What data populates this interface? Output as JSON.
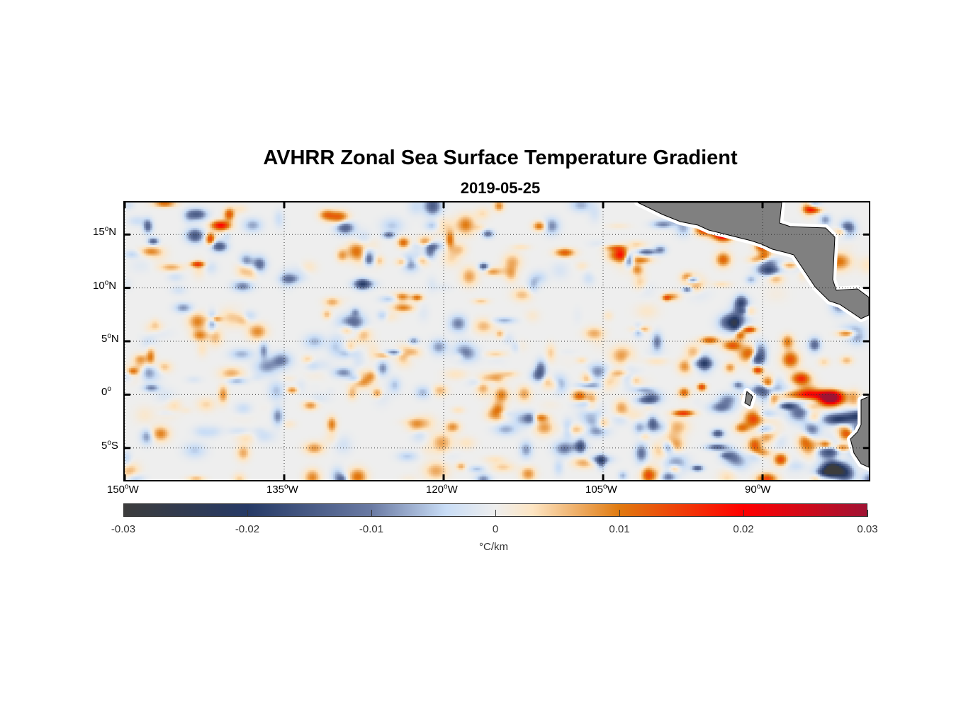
{
  "chart_data": {
    "type": "heatmap",
    "title": "AVHRR Zonal Sea Surface Temperature Gradient",
    "subtitle": "2019-05-25",
    "x_range_deg": [
      -150,
      -80
    ],
    "y_range_deg": [
      -8,
      18
    ],
    "x_ticks": [
      {
        "value": -150,
        "label": "150",
        "suffix": "W"
      },
      {
        "value": -135,
        "label": "135",
        "suffix": "W"
      },
      {
        "value": -120,
        "label": "120",
        "suffix": "W"
      },
      {
        "value": -105,
        "label": "105",
        "suffix": "W"
      },
      {
        "value": -90,
        "label": "90",
        "suffix": "W"
      }
    ],
    "y_ticks": [
      {
        "value": 15,
        "label": "15",
        "suffix": "N"
      },
      {
        "value": 10,
        "label": "10",
        "suffix": "N"
      },
      {
        "value": 5,
        "label": "5",
        "suffix": "N"
      },
      {
        "value": 0,
        "label": "0",
        "suffix": ""
      },
      {
        "value": -5,
        "label": "5",
        "suffix": "S"
      }
    ],
    "grid": "dotted",
    "colorbar": {
      "range": [
        -0.03,
        0.03
      ],
      "ticks": [
        "-0.03",
        "-0.02",
        "-0.01",
        "0",
        "0.01",
        "0.02",
        "0.03"
      ],
      "label": "°C/km",
      "colors": [
        [
          "-0.03",
          "#3c3c3c"
        ],
        [
          "-0.02",
          "#263a66"
        ],
        [
          "-0.01",
          "#6a7aa3"
        ],
        [
          "-0.004",
          "#c9ddf6"
        ],
        [
          "0",
          "#eeeeee"
        ],
        [
          "0.003",
          "#fde5c3"
        ],
        [
          "0.01",
          "#e07a10"
        ],
        [
          "0.02",
          "#ff0000"
        ],
        [
          "0.03",
          "#a01333"
        ]
      ]
    },
    "land_color": "#808080"
  }
}
